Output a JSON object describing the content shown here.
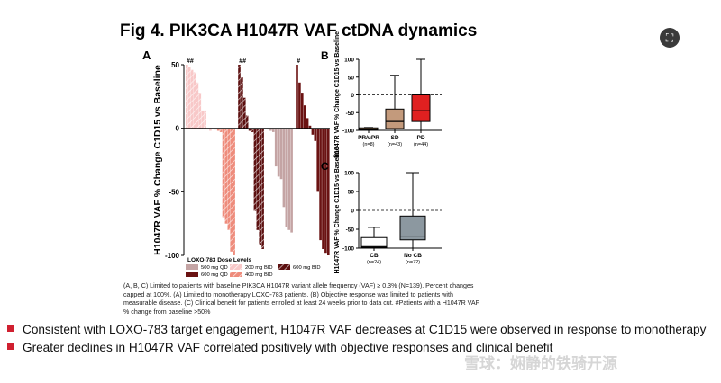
{
  "title": "Fig 4. PIK3CA H1047R VAF ctDNA dynamics",
  "expand_icon": "expand-icon",
  "panelA": {
    "label": "A",
    "ylabel": "H1047R VAF % Change C1D15 vs Baseline",
    "legend_title": "LOXO-783 Dose Levels",
    "legend": [
      {
        "name": "500 mg QD",
        "color": "#c4a4a4",
        "hatch": false
      },
      {
        "name": "200 mg BID",
        "color": "#f8c8c8",
        "hatch": true
      },
      {
        "name": "600 mg BID",
        "color": "#5c1010",
        "hatch": true
      },
      {
        "name": "600 mg QD",
        "color": "#6a1212",
        "hatch": false
      },
      {
        "name": "400 mg BID",
        "color": "#ee8c7c",
        "hatch": true
      }
    ],
    "markers": [
      "##",
      "##",
      "#"
    ]
  },
  "panelB": {
    "label": "B",
    "ylabel": "H1047R VAF % Change C1D15 vs Baseline",
    "categories": [
      "PR/uPR",
      "SD",
      "PD"
    ],
    "ns": [
      "(n=8)",
      "(n=43)",
      "(n=44)"
    ]
  },
  "panelC": {
    "label": "C",
    "ylabel": "H1047R VAF % Change C1D15 vs Baseline",
    "categories": [
      "CB",
      "No CB"
    ],
    "ns": [
      "(n=24)",
      "(n=72)"
    ]
  },
  "chart_data": [
    {
      "type": "bar",
      "panel": "A",
      "ylabel": "H1047R VAF % Change C1D15 vs Baseline",
      "ylim": [
        -100,
        50
      ],
      "yticks": [
        50,
        0,
        -50,
        -100
      ],
      "series": [
        {
          "name": "200 mg BID",
          "values": [
            50,
            48,
            46,
            44,
            36,
            28,
            14,
            14,
            -1,
            -2
          ]
        },
        {
          "name": "400 mg BID",
          "values": [
            -1,
            -2,
            -3,
            -70,
            -75,
            -80,
            -97,
            -100
          ]
        },
        {
          "name": "600 mg BID",
          "values": [
            50,
            40,
            24,
            10,
            -2,
            -3,
            -65,
            -80,
            -92,
            -95
          ]
        },
        {
          "name": "500 mg QD",
          "values": [
            -1,
            -2,
            -3,
            -30,
            -38,
            -40,
            -62,
            -78,
            -80,
            -82
          ]
        },
        {
          "name": "600 mg QD",
          "values": [
            50,
            36,
            28,
            18,
            8,
            2,
            -5,
            -10,
            -50,
            -88,
            -95,
            -98,
            -100
          ]
        }
      ]
    },
    {
      "type": "box",
      "panel": "B",
      "categories": [
        "PR/uPR",
        "SD",
        "PD"
      ],
      "ylim": [
        -100,
        100
      ],
      "yticks": [
        100,
        50,
        0,
        -50,
        -100
      ],
      "colors": [
        "#f2b56e",
        "#c39a7c",
        "#e02020"
      ],
      "boxes": [
        {
          "min": -100,
          "q1": -98,
          "median": -96,
          "q3": -93,
          "max": -92
        },
        {
          "min": -100,
          "q1": -95,
          "median": -75,
          "q3": -40,
          "max": 55
        },
        {
          "min": -100,
          "q1": -75,
          "median": -45,
          "q3": 0,
          "max": 100
        }
      ]
    },
    {
      "type": "box",
      "panel": "C",
      "categories": [
        "CB",
        "No CB"
      ],
      "ylim": [
        -100,
        100
      ],
      "yticks": [
        100,
        50,
        0,
        -50,
        -100
      ],
      "colors": [
        "#ffffff",
        "#8c98a0"
      ],
      "boxes": [
        {
          "min": -100,
          "q1": -98,
          "median": -96,
          "q3": -72,
          "max": -45
        },
        {
          "min": -100,
          "q1": -78,
          "median": -68,
          "q3": -15,
          "max": 100
        }
      ]
    }
  ],
  "caption": [
    "(A, B, C) Limited to patients with baseline PIK3CA H1047R variant allele frequency (VAF) ≥ 0.3% (N=139). Percent changes capped at 100%. (A) Limited to monotherapy LOXO-783 patients. (B) Objective response was limited to patients with measurable disease. (C) Clinical benefit for patients enrolled at least 24 weeks prior to data cut. #Patients with a H1047R VAF % change from baseline >50%"
  ],
  "bullets": [
    "Consistent with LOXO-783 target engagement, H1047R VAF decreases at C1D15 were observed in response to monotherapy",
    "Greater declines in H1047R VAF correlated positively with objective responses and clinical benefit"
  ],
  "watermark": "雪球：娴静的铁骑开源"
}
